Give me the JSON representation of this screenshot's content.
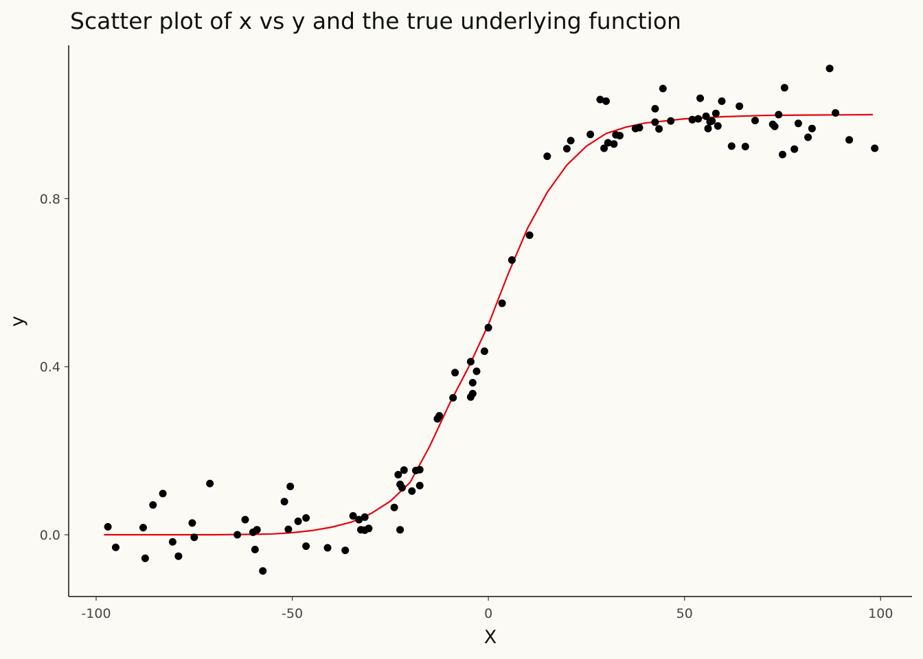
{
  "chart_data": {
    "type": "scatter",
    "title": "Scatter plot of x vs y and the true underlying function",
    "xlabel": "X",
    "ylabel": "y",
    "xlim": [
      -107,
      108
    ],
    "ylim": [
      -0.147,
      1.165
    ],
    "xticks": [
      -100,
      -50,
      0,
      50,
      100
    ],
    "xtick_labels": [
      "-100",
      "-50",
      "0",
      "50",
      "100"
    ],
    "yticks": [
      0.0,
      0.4,
      0.8
    ],
    "ytick_labels": [
      "0.0",
      "0.4",
      "0.8"
    ],
    "grid": false,
    "legend": "none",
    "colors": {
      "points": "#000000",
      "curve": "#e8000b"
    },
    "series": [
      {
        "type": "scatter",
        "x": [
          -97,
          -95,
          -88,
          -87.5,
          -85.5,
          -83,
          -80.5,
          -79,
          -75.5,
          -75,
          -71,
          -64,
          -62,
          -60,
          -59.5,
          -59,
          -57.5,
          -52,
          -51,
          -50.5,
          -48.5,
          -46.5,
          -46.5,
          -41,
          -36.5,
          -34.5,
          -33,
          -32.5,
          -31.5,
          -31.5,
          -30.5,
          -24,
          -23,
          -22.5,
          -22.5,
          -22,
          -21.5,
          -19.5,
          -18.5,
          -17.5,
          -17.5,
          -13,
          -12.5,
          -9,
          -8.5,
          -4.5,
          -4.5,
          -4,
          -4,
          -3,
          -1,
          0,
          3.5,
          6,
          10.5,
          15,
          20,
          21,
          26,
          28.5,
          29.5,
          30,
          30.5,
          32,
          32.5,
          33.5,
          37.5,
          38.5,
          42.5,
          42.5,
          43.5,
          44.5,
          46.5,
          52,
          53.5,
          54,
          55.5,
          56,
          56.5,
          57,
          58,
          58.5,
          59.5,
          62,
          64,
          65.5,
          68,
          72.5,
          73,
          74,
          75,
          75.5,
          78,
          79,
          81.5,
          82.5,
          87,
          88.5,
          92,
          98.5
        ],
        "y": [
          0.019,
          -0.03,
          0.017,
          -0.056,
          0.071,
          0.098,
          -0.017,
          -0.051,
          0.028,
          -0.006,
          0.122,
          0.0,
          0.036,
          0.006,
          -0.035,
          0.012,
          -0.086,
          0.079,
          0.013,
          0.115,
          0.032,
          0.04,
          -0.027,
          -0.031,
          -0.037,
          0.045,
          0.036,
          0.012,
          0.042,
          0.011,
          0.015,
          0.065,
          0.143,
          0.12,
          0.012,
          0.112,
          0.154,
          0.104,
          0.153,
          0.155,
          0.117,
          0.276,
          0.283,
          0.326,
          0.386,
          0.412,
          0.328,
          0.362,
          0.336,
          0.389,
          0.437,
          0.493,
          0.551,
          0.654,
          0.713,
          0.901,
          0.919,
          0.938,
          0.953,
          1.036,
          0.92,
          1.032,
          0.933,
          0.93,
          0.952,
          0.95,
          0.967,
          0.969,
          1.014,
          0.982,
          0.966,
          1.062,
          0.985,
          0.988,
          0.99,
          1.039,
          0.996,
          0.967,
          0.983,
          0.985,
          1.003,
          0.973,
          1.032,
          0.925,
          1.02,
          0.924,
          0.986,
          0.977,
          0.972,
          1.0,
          0.905,
          1.064,
          0.918,
          0.979,
          0.946,
          0.967,
          1.11,
          1.004,
          0.94,
          0.92
        ]
      },
      {
        "type": "line",
        "x": [
          -98,
          -90,
          -80,
          -70,
          -60,
          -55,
          -50,
          -45,
          -40,
          -35,
          -30,
          -25,
          -20,
          -15,
          -10,
          -5,
          0,
          5,
          10,
          15,
          20,
          25,
          30,
          35,
          40,
          50,
          60,
          70,
          80,
          90,
          98
        ],
        "y": [
          0.0,
          0.0,
          0.0,
          0.0,
          0.001,
          0.002,
          0.005,
          0.01,
          0.018,
          0.03,
          0.05,
          0.08,
          0.124,
          0.21,
          0.31,
          0.4,
          0.5,
          0.62,
          0.73,
          0.815,
          0.88,
          0.925,
          0.955,
          0.97,
          0.98,
          0.99,
          0.995,
          0.998,
          0.999,
          0.9995,
          1.0
        ]
      }
    ]
  }
}
